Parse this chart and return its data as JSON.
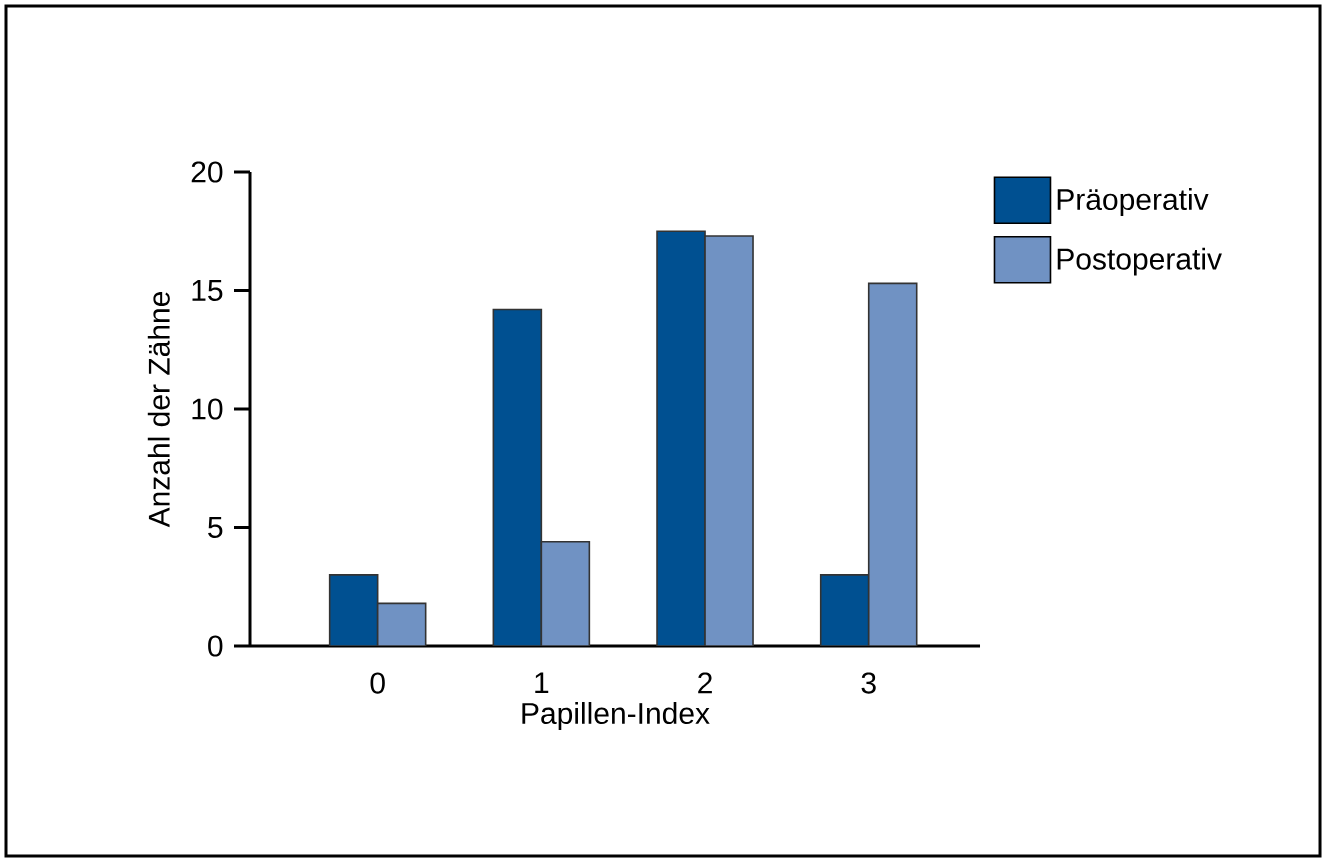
{
  "chart_data": {
    "type": "bar",
    "xlabel": "Papillen-Index",
    "ylabel": "Anzahl der Zähne",
    "categories": [
      "0",
      "1",
      "2",
      "3"
    ],
    "series": [
      {
        "name": "Präoperativ",
        "color": "#005091",
        "values": [
          3,
          14.2,
          17.5,
          3
        ]
      },
      {
        "name": "Postoperativ",
        "color": "#7092c3",
        "values": [
          1.8,
          4.4,
          17.3,
          15.3
        ]
      }
    ],
    "ylim": [
      0,
      20
    ],
    "yticks": [
      0,
      5,
      10,
      15,
      20
    ],
    "grid": false,
    "legend": "top right"
  }
}
